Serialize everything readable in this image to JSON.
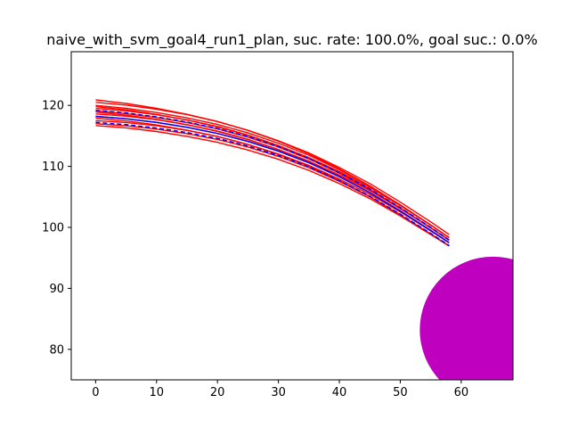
{
  "chart_data": {
    "type": "line",
    "title": "naive_with_svm_goal4_run1_plan, suc. rate: 100.0%, goal suc.: 0.0%",
    "xlabel": "",
    "ylabel": "",
    "xlim": [
      -4,
      68.5
    ],
    "ylim": [
      75,
      128.8
    ],
    "xticks": [
      0,
      10,
      20,
      30,
      40,
      50,
      60
    ],
    "yticks": [
      80,
      90,
      100,
      110,
      120
    ],
    "grid": false,
    "colors": {
      "rollouts": "#ff0000",
      "plan": "#0000ff",
      "goal": "#bf00bf"
    },
    "goal_region": {
      "center": [
        65.2,
        83.2
      ],
      "radius": 12
    },
    "planned_path": {
      "x": [
        0,
        5,
        10,
        15,
        20,
        25,
        30,
        35,
        40,
        45,
        50,
        55,
        58
      ],
      "y": [
        118.2,
        117.8,
        117.2,
        116.4,
        115.4,
        114.1,
        112.5,
        110.6,
        108.3,
        105.7,
        102.7,
        99.5,
        97.5
      ]
    },
    "band_offsets": [
      -1.0,
      1.0
    ],
    "rollout_offsets": [
      -1.6,
      -1.2,
      -0.8,
      -0.4,
      0,
      0.3,
      0.6,
      0.9,
      1.2,
      1.5,
      1.8,
      2.2,
      2.6
    ]
  }
}
